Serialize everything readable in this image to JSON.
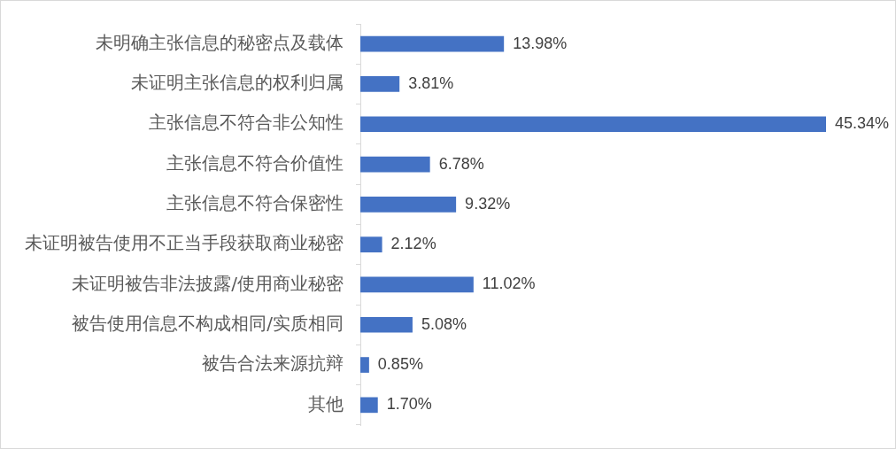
{
  "chart_data": {
    "type": "bar",
    "orientation": "horizontal",
    "categories": [
      "未明确主张信息的秘密点及载体",
      "未证明主张信息的权利归属",
      "主张信息不符合非公知性",
      "主张信息不符合价值性",
      "主张信息不符合保密性",
      "未证明被告使用不正当手段获取商业秘密",
      "未证明被告非法披露/使用商业秘密",
      "被告使用信息不构成相同/实质相同",
      "被告合法来源抗辩",
      "其他"
    ],
    "values": [
      13.98,
      3.81,
      45.34,
      6.78,
      9.32,
      2.12,
      11.02,
      5.08,
      0.85,
      1.7
    ],
    "value_labels": [
      "13.98%",
      "3.81%",
      "45.34%",
      "6.78%",
      "9.32%",
      "2.12%",
      "11.02%",
      "5.08%",
      "0.85%",
      "1.70%"
    ],
    "color": "#4472c4",
    "grid": false,
    "legend": false
  }
}
